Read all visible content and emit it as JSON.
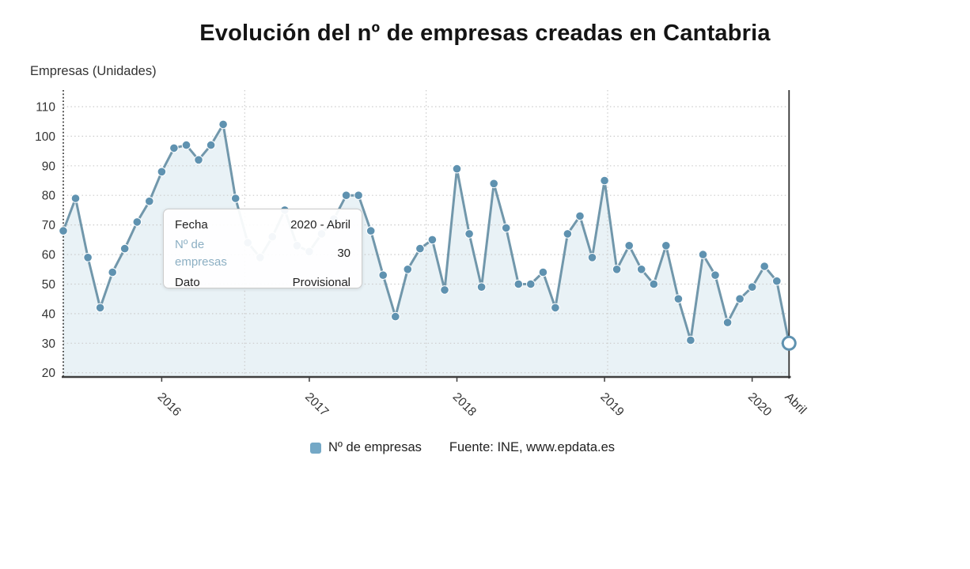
{
  "tooltip": {
    "rows": [
      {
        "label": "Fecha",
        "value": "2020 - Abril"
      },
      {
        "label": "Nº de empresas",
        "value": "30"
      },
      {
        "label": "Dato",
        "value": "Provisional"
      }
    ]
  },
  "legend": {
    "series_label": "Nº de empresas",
    "source": "Fuente: INE, www.epdata.es"
  },
  "colors": {
    "line": "#7197ab",
    "marker": "#5f92b0",
    "area_fill": "rgba(127,175,200,0.17)",
    "grid": "#cccccc",
    "axis": "#3e3e3e",
    "crosshair": "#333333",
    "tooltip_label_blue": "#8cafc3",
    "legend_swatch": "#74a8c6",
    "text": "#333333"
  },
  "chart_data": {
    "type": "area",
    "title": "Evolución del nº de empresas creadas en Cantabria",
    "ylabel": "Empresas (Unidades)",
    "xlabel": "",
    "frequency": "monthly",
    "x_start": "2015-05",
    "x_end": "2020-04",
    "series": [
      {
        "name": "Nº de empresas",
        "values": [
          68,
          79,
          59,
          42,
          54,
          62,
          71,
          78,
          88,
          96,
          97,
          92,
          97,
          104,
          79,
          64,
          59,
          66,
          75,
          63,
          61,
          67,
          72,
          80,
          80,
          68,
          53,
          39,
          55,
          62,
          65,
          48,
          89,
          67,
          49,
          84,
          69,
          50,
          50,
          54,
          42,
          67,
          73,
          59,
          85,
          55,
          63,
          55,
          50,
          63,
          45,
          31,
          60,
          53,
          37,
          45,
          49,
          56,
          51,
          30
        ]
      }
    ],
    "y_ticks": [
      20,
      30,
      40,
      50,
      60,
      70,
      80,
      90,
      100,
      110
    ],
    "ylim": [
      20,
      112
    ],
    "x_ticks": [
      {
        "label": "2016",
        "index": 8,
        "tick": true
      },
      {
        "label": "2017",
        "index": 20,
        "tick": true
      },
      {
        "label": "2018",
        "index": 32,
        "tick": true
      },
      {
        "label": "2019",
        "index": 44,
        "tick": true
      },
      {
        "label": "2020",
        "index": 56,
        "tick": true
      },
      {
        "label": "Abril",
        "index": 59,
        "tick": false
      }
    ],
    "grid": "dotted",
    "legend_position": "bottom",
    "highlight": {
      "index": 59,
      "value": 30,
      "label": "2020 - Abril",
      "marker": "open-circle"
    }
  }
}
